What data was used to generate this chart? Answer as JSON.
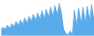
{
  "values": [
    15,
    22,
    18,
    28,
    20,
    32,
    25,
    38,
    28,
    42,
    32,
    48,
    35,
    52,
    40,
    58,
    42,
    62,
    45,
    68,
    48,
    72,
    52,
    78,
    55,
    82,
    58,
    88,
    62,
    18,
    5,
    2,
    12,
    4,
    70,
    30,
    75,
    35,
    78,
    38,
    80,
    42,
    85,
    45
  ],
  "line_color": "#5aabea",
  "fill_color": "#5aabea",
  "background_color": "#ffffff",
  "ylim_min": 0
}
